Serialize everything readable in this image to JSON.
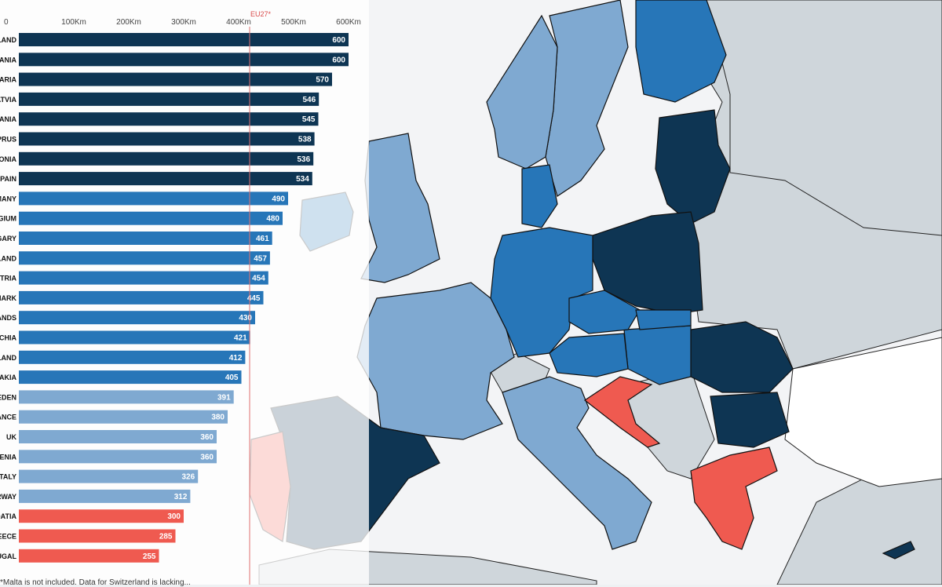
{
  "colors": {
    "dark_navy": "#0e3553",
    "mid_blue": "#2776b8",
    "light_blue": "#7fa9d1",
    "red": "#ef5a50",
    "non_eu_gray": "#cfd6db",
    "sea": "#f3f4f6",
    "land_beige": "#faf3e4"
  },
  "map": {
    "regions": [
      {
        "name": "finland",
        "tier": "mid_blue"
      },
      {
        "name": "sweden",
        "tier": "light_blue"
      },
      {
        "name": "norway",
        "tier": "light_blue"
      },
      {
        "name": "estonia-latvia-lithuania",
        "tier": "dark_navy"
      },
      {
        "name": "poland",
        "tier": "dark_navy"
      },
      {
        "name": "germany",
        "tier": "mid_blue"
      },
      {
        "name": "denmark",
        "tier": "mid_blue"
      },
      {
        "name": "ireland",
        "tier": "mid_blue"
      },
      {
        "name": "uk",
        "tier": "light_blue"
      },
      {
        "name": "france",
        "tier": "light_blue"
      },
      {
        "name": "spain",
        "tier": "dark_navy"
      },
      {
        "name": "portugal",
        "tier": "red"
      },
      {
        "name": "italy",
        "tier": "light_blue"
      },
      {
        "name": "croatia",
        "tier": "red"
      },
      {
        "name": "greece",
        "tier": "red"
      },
      {
        "name": "romania",
        "tier": "dark_navy"
      },
      {
        "name": "bulgaria",
        "tier": "dark_navy"
      },
      {
        "name": "hungary",
        "tier": "mid_blue"
      },
      {
        "name": "austria",
        "tier": "mid_blue"
      },
      {
        "name": "czechia",
        "tier": "mid_blue"
      },
      {
        "name": "slovakia",
        "tier": "mid_blue"
      },
      {
        "name": "cyprus",
        "tier": "dark_navy"
      }
    ]
  },
  "chart_data": {
    "type": "bar",
    "orientation": "horizontal",
    "categories": [
      "POLAND",
      "LITHUANIA",
      "BULGARIA",
      "LATVIA",
      "ROMANIA",
      "CYPRUS",
      "ESTONIA",
      "SPAIN",
      "GERMANY",
      "BELGIUM",
      "HUNGARY",
      "FINLAND",
      "AUSTRIA",
      "DENMARK",
      "NETHERLANDS",
      "CZECHIA",
      "IRELAND",
      "SLOVAKIA",
      "SWEDEN",
      "FRANCE",
      "UK",
      "SLOVENIA",
      "ITALY",
      "NORWAY",
      "CROATIA",
      "GREECE",
      "PORTUGAL"
    ],
    "values": [
      600,
      600,
      570,
      546,
      545,
      538,
      536,
      534,
      490,
      480,
      461,
      457,
      454,
      445,
      430,
      421,
      412,
      405,
      391,
      380,
      360,
      360,
      326,
      312,
      300,
      285,
      255
    ],
    "tiers": [
      "dark_navy",
      "dark_navy",
      "dark_navy",
      "dark_navy",
      "dark_navy",
      "dark_navy",
      "dark_navy",
      "dark_navy",
      "mid_blue",
      "mid_blue",
      "mid_blue",
      "mid_blue",
      "mid_blue",
      "mid_blue",
      "mid_blue",
      "mid_blue",
      "mid_blue",
      "mid_blue",
      "light_blue",
      "light_blue",
      "light_blue",
      "light_blue",
      "light_blue",
      "light_blue",
      "red",
      "red",
      "red"
    ],
    "axis_ticks": [
      "0",
      "100Km",
      "200Km",
      "300Km",
      "400Km",
      "500Km",
      "600Km"
    ],
    "xlim": [
      0,
      600
    ],
    "reference_line": {
      "label": "EU27*",
      "value": 420
    },
    "title": "",
    "xlabel": "",
    "ylabel": ""
  },
  "footnote": "*Malta is not included. Data for Switzerland is lacking..."
}
